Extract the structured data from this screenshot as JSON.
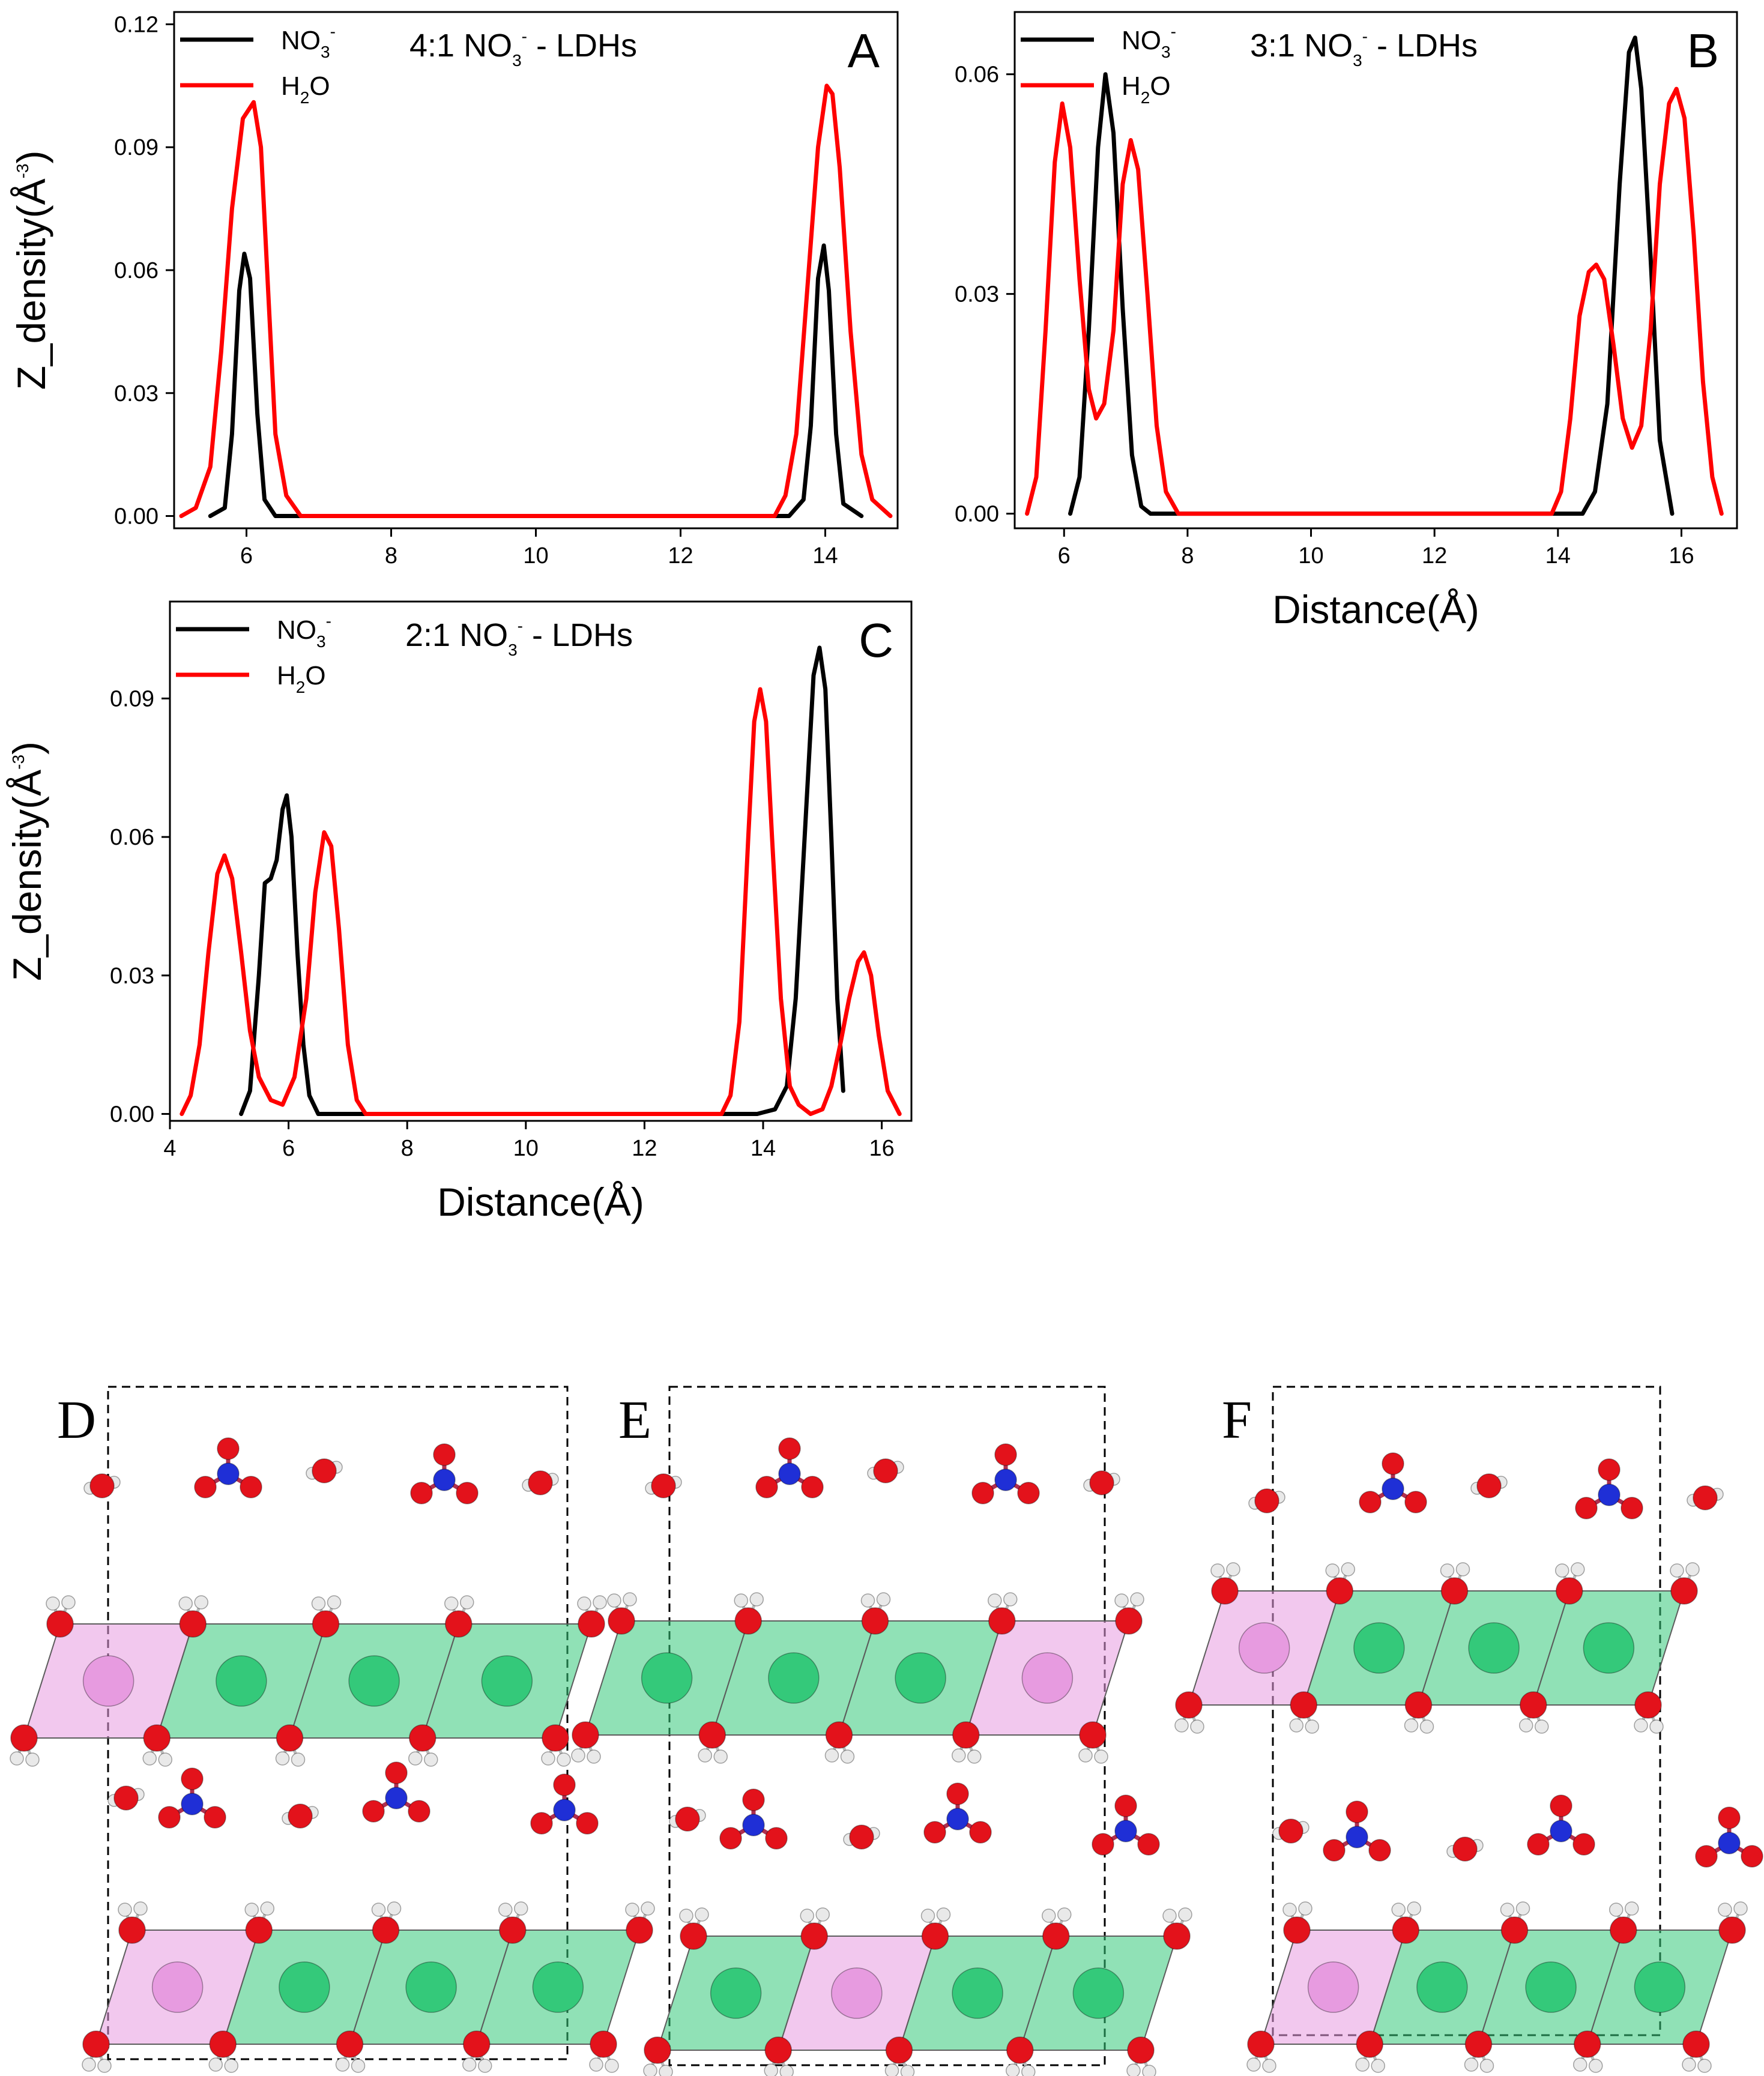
{
  "figure_caption": "",
  "colors": {
    "no3": "#000000",
    "h2o": "#ff0000"
  },
  "chart_data": [
    {
      "type": "line",
      "panel": "A",
      "title": {
        "prefix": "4:1 NO",
        "sub": "3",
        "sup": "-",
        "suffix": " - LDHs"
      },
      "ylabel": {
        "prefix": "Z_density(Å",
        "sup": "-3",
        "suffix": ")"
      },
      "xlabel": "",
      "xlim": [
        5.0,
        15.0
      ],
      "ylim": [
        -0.003,
        0.123
      ],
      "xticks": [
        6,
        8,
        10,
        12,
        14
      ],
      "xtick_labels": [
        "6",
        "8",
        "10",
        "12",
        "14"
      ],
      "yticks": [
        0.0,
        0.03,
        0.06,
        0.09,
        0.12
      ],
      "ytick_labels": [
        "0.00",
        "0.03",
        "0.06",
        "0.09",
        "0.12"
      ],
      "legend_position": "top-left",
      "series": [
        {
          "key": "no3",
          "name": {
            "base": "NO",
            "sub": "3",
            "sup": "-"
          },
          "points": [
            [
              5.5,
              0
            ],
            [
              5.7,
              0.002
            ],
            [
              5.8,
              0.02
            ],
            [
              5.9,
              0.055
            ],
            [
              5.97,
              0.064
            ],
            [
              6.05,
              0.058
            ],
            [
              6.15,
              0.025
            ],
            [
              6.25,
              0.004
            ],
            [
              6.4,
              0
            ],
            [
              13.5,
              0
            ],
            [
              13.7,
              0.004
            ],
            [
              13.8,
              0.022
            ],
            [
              13.9,
              0.058
            ],
            [
              13.98,
              0.066
            ],
            [
              14.05,
              0.055
            ],
            [
              14.15,
              0.02
            ],
            [
              14.25,
              0.003
            ],
            [
              14.5,
              0
            ]
          ]
        },
        {
          "key": "h2o",
          "name": {
            "base": "H",
            "sub": "2",
            "suffix": "O"
          },
          "points": [
            [
              5.1,
              0
            ],
            [
              5.3,
              0.002
            ],
            [
              5.5,
              0.012
            ],
            [
              5.65,
              0.04
            ],
            [
              5.8,
              0.075
            ],
            [
              5.95,
              0.097
            ],
            [
              6.1,
              0.101
            ],
            [
              6.2,
              0.09
            ],
            [
              6.3,
              0.055
            ],
            [
              6.4,
              0.02
            ],
            [
              6.55,
              0.005
            ],
            [
              6.75,
              0
            ],
            [
              13.3,
              0
            ],
            [
              13.45,
              0.005
            ],
            [
              13.6,
              0.02
            ],
            [
              13.75,
              0.055
            ],
            [
              13.9,
              0.09
            ],
            [
              14.02,
              0.105
            ],
            [
              14.1,
              0.103
            ],
            [
              14.2,
              0.085
            ],
            [
              14.35,
              0.045
            ],
            [
              14.5,
              0.015
            ],
            [
              14.65,
              0.004
            ],
            [
              14.9,
              0
            ]
          ]
        }
      ]
    },
    {
      "type": "line",
      "panel": "B",
      "title": {
        "prefix": "3:1 NO",
        "sub": "3",
        "sup": "-",
        "suffix": " - LDHs"
      },
      "ylabel": {
        "prefix": "",
        "sup": "",
        "suffix": ""
      },
      "xlabel": "Distance(Å)",
      "xlim": [
        5.2,
        16.9
      ],
      "ylim": [
        -0.002,
        0.0685
      ],
      "xticks": [
        6,
        8,
        10,
        12,
        14,
        16
      ],
      "xtick_labels": [
        "6",
        "8",
        "10",
        "12",
        "14",
        "16"
      ],
      "yticks": [
        0.0,
        0.03,
        0.06
      ],
      "ytick_labels": [
        "0.00",
        "0.03",
        "0.06"
      ],
      "legend_position": "top-left",
      "series": [
        {
          "key": "no3",
          "name": {
            "base": "NO",
            "sub": "3",
            "sup": "-"
          },
          "points": [
            [
              6.1,
              0
            ],
            [
              6.25,
              0.005
            ],
            [
              6.4,
              0.025
            ],
            [
              6.55,
              0.05
            ],
            [
              6.67,
              0.06
            ],
            [
              6.8,
              0.052
            ],
            [
              6.95,
              0.028
            ],
            [
              7.1,
              0.008
            ],
            [
              7.25,
              0.001
            ],
            [
              7.4,
              0
            ],
            [
              14.4,
              0
            ],
            [
              14.6,
              0.003
            ],
            [
              14.8,
              0.015
            ],
            [
              15.0,
              0.045
            ],
            [
              15.15,
              0.063
            ],
            [
              15.25,
              0.065
            ],
            [
              15.35,
              0.058
            ],
            [
              15.5,
              0.035
            ],
            [
              15.65,
              0.01
            ],
            [
              15.85,
              0
            ]
          ]
        },
        {
          "key": "h2o",
          "name": {
            "base": "H",
            "sub": "2",
            "suffix": "O"
          },
          "points": [
            [
              5.4,
              0
            ],
            [
              5.55,
              0.005
            ],
            [
              5.7,
              0.025
            ],
            [
              5.85,
              0.048
            ],
            [
              5.97,
              0.056
            ],
            [
              6.1,
              0.05
            ],
            [
              6.25,
              0.032
            ],
            [
              6.4,
              0.017
            ],
            [
              6.52,
              0.013
            ],
            [
              6.65,
              0.015
            ],
            [
              6.8,
              0.025
            ],
            [
              6.95,
              0.045
            ],
            [
              7.08,
              0.051
            ],
            [
              7.2,
              0.047
            ],
            [
              7.35,
              0.03
            ],
            [
              7.5,
              0.012
            ],
            [
              7.65,
              0.003
            ],
            [
              7.85,
              0
            ],
            [
              13.9,
              0
            ],
            [
              14.05,
              0.003
            ],
            [
              14.2,
              0.013
            ],
            [
              14.35,
              0.027
            ],
            [
              14.5,
              0.033
            ],
            [
              14.62,
              0.034
            ],
            [
              14.75,
              0.032
            ],
            [
              14.9,
              0.023
            ],
            [
              15.05,
              0.013
            ],
            [
              15.2,
              0.009
            ],
            [
              15.35,
              0.012
            ],
            [
              15.5,
              0.025
            ],
            [
              15.65,
              0.045
            ],
            [
              15.8,
              0.056
            ],
            [
              15.92,
              0.058
            ],
            [
              16.05,
              0.054
            ],
            [
              16.2,
              0.038
            ],
            [
              16.35,
              0.018
            ],
            [
              16.5,
              0.005
            ],
            [
              16.65,
              0
            ]
          ]
        }
      ]
    },
    {
      "type": "line",
      "panel": "C",
      "title": {
        "prefix": "2:1 NO",
        "sub": "3",
        "sup": "-",
        "suffix": " - LDHs"
      },
      "ylabel": {
        "prefix": "Z_density(Å",
        "sup": "-3",
        "suffix": ")"
      },
      "xlabel": "Distance(Å)",
      "xlim": [
        4.0,
        16.5
      ],
      "ylim": [
        -0.0015,
        0.111
      ],
      "xticks": [
        4,
        6,
        8,
        10,
        12,
        14,
        16
      ],
      "xtick_labels": [
        "4",
        "6",
        "8",
        "10",
        "12",
        "14",
        "16"
      ],
      "yticks": [
        0.0,
        0.03,
        0.06,
        0.09
      ],
      "ytick_labels": [
        "0.00",
        "0.03",
        "0.06",
        "0.09"
      ],
      "legend_position": "top-left",
      "series": [
        {
          "key": "no3",
          "name": {
            "base": "NO",
            "sub": "3",
            "sup": "-"
          },
          "points": [
            [
              5.2,
              0
            ],
            [
              5.35,
              0.005
            ],
            [
              5.5,
              0.03
            ],
            [
              5.6,
              0.05
            ],
            [
              5.7,
              0.051
            ],
            [
              5.8,
              0.055
            ],
            [
              5.9,
              0.066
            ],
            [
              5.97,
              0.069
            ],
            [
              6.05,
              0.06
            ],
            [
              6.15,
              0.035
            ],
            [
              6.25,
              0.015
            ],
            [
              6.35,
              0.004
            ],
            [
              6.5,
              0
            ],
            [
              13.9,
              0
            ],
            [
              14.2,
              0.001
            ],
            [
              14.4,
              0.006
            ],
            [
              14.55,
              0.025
            ],
            [
              14.7,
              0.06
            ],
            [
              14.85,
              0.095
            ],
            [
              14.95,
              0.101
            ],
            [
              15.05,
              0.092
            ],
            [
              15.15,
              0.06
            ],
            [
              15.25,
              0.025
            ],
            [
              15.35,
              0.005
            ]
          ]
        },
        {
          "key": "h2o",
          "name": {
            "base": "H",
            "sub": "2",
            "suffix": "O"
          },
          "points": [
            [
              4.2,
              0
            ],
            [
              4.35,
              0.004
            ],
            [
              4.5,
              0.015
            ],
            [
              4.65,
              0.035
            ],
            [
              4.8,
              0.052
            ],
            [
              4.92,
              0.056
            ],
            [
              5.05,
              0.051
            ],
            [
              5.2,
              0.035
            ],
            [
              5.35,
              0.018
            ],
            [
              5.5,
              0.008
            ],
            [
              5.7,
              0.003
            ],
            [
              5.9,
              0.002
            ],
            [
              6.1,
              0.008
            ],
            [
              6.3,
              0.025
            ],
            [
              6.45,
              0.048
            ],
            [
              6.6,
              0.061
            ],
            [
              6.72,
              0.058
            ],
            [
              6.85,
              0.04
            ],
            [
              7.0,
              0.015
            ],
            [
              7.15,
              0.003
            ],
            [
              7.3,
              0
            ],
            [
              13.3,
              0
            ],
            [
              13.45,
              0.004
            ],
            [
              13.6,
              0.02
            ],
            [
              13.75,
              0.06
            ],
            [
              13.85,
              0.085
            ],
            [
              13.95,
              0.092
            ],
            [
              14.05,
              0.085
            ],
            [
              14.15,
              0.06
            ],
            [
              14.3,
              0.025
            ],
            [
              14.45,
              0.006
            ],
            [
              14.6,
              0.002
            ],
            [
              14.8,
              0
            ],
            [
              15.0,
              0.001
            ],
            [
              15.15,
              0.006
            ],
            [
              15.3,
              0.015
            ],
            [
              15.45,
              0.025
            ],
            [
              15.6,
              0.033
            ],
            [
              15.7,
              0.035
            ],
            [
              15.82,
              0.03
            ],
            [
              15.95,
              0.017
            ],
            [
              16.1,
              0.005
            ],
            [
              16.3,
              0
            ]
          ]
        }
      ]
    }
  ],
  "snapshots": [
    {
      "label": "D"
    },
    {
      "label": "E"
    },
    {
      "label": "F"
    }
  ]
}
